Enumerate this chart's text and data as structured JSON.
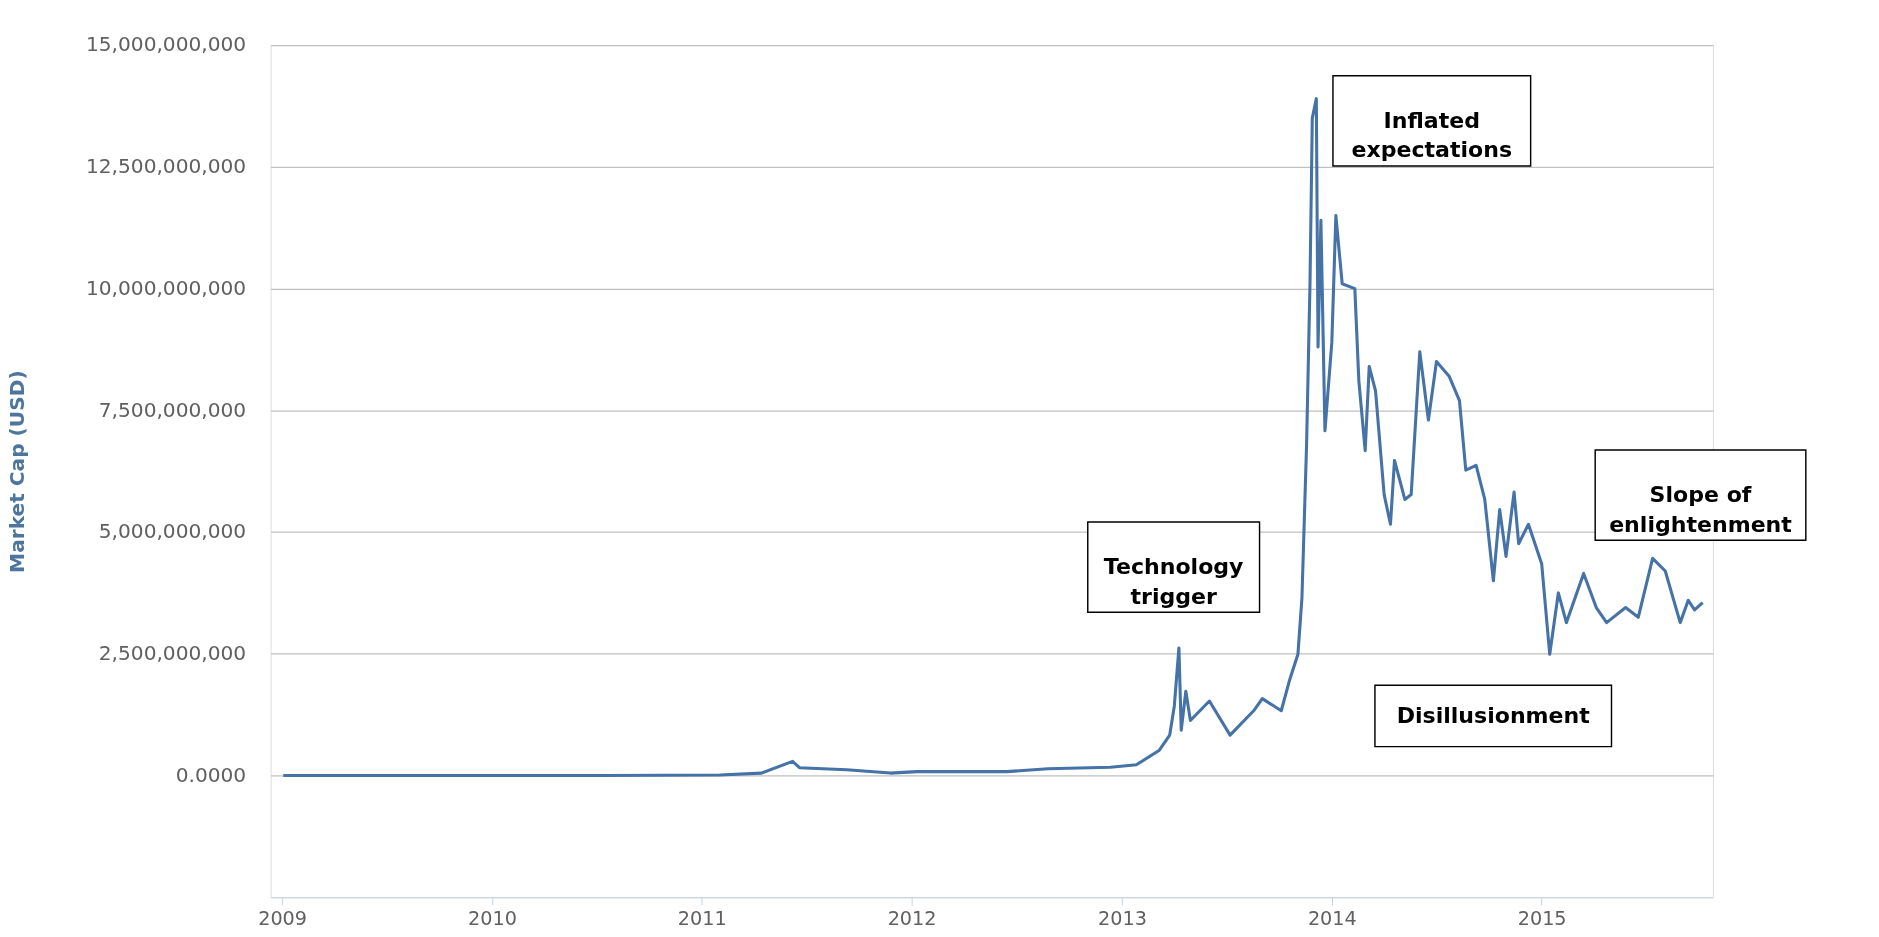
{
  "chart_data": {
    "type": "line",
    "ylabel": "Market Cap (USD)",
    "xlim": [
      "2008-12-12",
      "2015-10-26"
    ],
    "xticks": [
      {
        "value": "2009-01-01",
        "label": "2009"
      },
      {
        "value": "2010-01-01",
        "label": "2010"
      },
      {
        "value": "2011-01-01",
        "label": "2011"
      },
      {
        "value": "2012-01-01",
        "label": "2012"
      },
      {
        "value": "2013-01-01",
        "label": "2013"
      },
      {
        "value": "2014-01-01",
        "label": "2014"
      },
      {
        "value": "2015-01-01",
        "label": "2015"
      }
    ],
    "ylim": [
      -2500000000,
      15000000000
    ],
    "yticks": [
      {
        "value": 0,
        "label": "0.0000"
      },
      {
        "value": 2500000000,
        "label": "2,500,000,000"
      },
      {
        "value": 5000000000,
        "label": "5,000,000,000"
      },
      {
        "value": 7500000000,
        "label": "7,500,000,000"
      },
      {
        "value": 10000000000,
        "label": "10,000,000,000"
      },
      {
        "value": 12500000000,
        "label": "12,500,000,000"
      },
      {
        "value": 15000000000,
        "label": "15,000,000,000"
      }
    ],
    "grid": "y",
    "marker": "none",
    "line_style": "solid",
    "x": [
      "2009-01-03",
      "2010-07-17",
      "2011-02-01",
      "2011-04-15",
      "2011-06-08",
      "2011-06-20",
      "2011-09-10",
      "2011-11-25",
      "2012-01-10",
      "2012-06-15",
      "2012-08-25",
      "2012-12-12",
      "2013-01-26",
      "2013-03-07",
      "2013-03-25",
      "2013-04-02",
      "2013-04-10",
      "2013-04-14",
      "2013-04-22",
      "2013-04-30",
      "2013-06-02",
      "2013-07-08",
      "2013-08-18",
      "2013-09-02",
      "2013-10-05",
      "2013-10-19",
      "2013-11-03",
      "2013-11-10",
      "2013-11-18",
      "2013-11-24",
      "2013-11-28",
      "2013-12-05",
      "2013-12-08",
      "2013-12-13",
      "2013-12-20",
      "2014-01-01",
      "2014-01-08",
      "2014-01-19",
      "2014-02-10",
      "2014-02-17",
      "2014-02-28",
      "2014-03-07",
      "2014-03-18",
      "2014-04-02",
      "2014-04-13",
      "2014-04-20",
      "2014-05-08",
      "2014-05-19",
      "2014-06-03",
      "2014-06-18",
      "2014-07-02",
      "2014-07-24",
      "2014-08-11",
      "2014-08-22",
      "2014-09-09",
      "2014-09-24",
      "2014-10-09",
      "2014-10-20",
      "2014-10-31",
      "2014-11-14",
      "2014-11-22",
      "2014-12-09",
      "2015-01-01",
      "2015-01-15",
      "2015-01-30",
      "2015-02-13",
      "2015-03-15",
      "2015-04-06",
      "2015-04-24",
      "2015-05-27",
      "2015-06-18",
      "2015-07-13",
      "2015-08-04",
      "2015-08-30",
      "2015-09-13",
      "2015-09-24",
      "2015-10-08"
    ],
    "series": [
      {
        "color": "#4572a7",
        "values": [
          0,
          0,
          10000000,
          50000000,
          290000000,
          160000000,
          120000000,
          50000000,
          80000000,
          80000000,
          140000000,
          170000000,
          220000000,
          520000000,
          830000000,
          1430000000,
          2620000000,
          930000000,
          1730000000,
          1130000000,
          1530000000,
          830000000,
          1330000000,
          1580000000,
          1330000000,
          1940000000,
          2490000000,
          3650000000,
          6770000000,
          10100000000,
          13500000000,
          13900000000,
          8800000000,
          11400000000,
          7080000000,
          8900000000,
          11500000000,
          10100000000,
          10000000000,
          8100000000,
          6670000000,
          8400000000,
          7900000000,
          5770000000,
          5160000000,
          6470000000,
          5670000000,
          5770000000,
          8700000000,
          7300000000,
          8500000000,
          8200000000,
          7700000000,
          6270000000,
          6370000000,
          5670000000,
          4000000000,
          5460000000,
          4500000000,
          5820000000,
          4760000000,
          5160000000,
          4350000000,
          2490000000,
          3750000000,
          3140000000,
          4150000000,
          3450000000,
          3140000000,
          3450000000,
          3250000000,
          4460000000,
          4200000000,
          3140000000,
          3600000000,
          3400000000,
          3550000000
        ]
      }
    ],
    "annotations": [
      "Technology\ntrigger",
      "Inflated\nexpectations",
      "Disillusionment",
      "Slope of\nenlightenment"
    ]
  }
}
